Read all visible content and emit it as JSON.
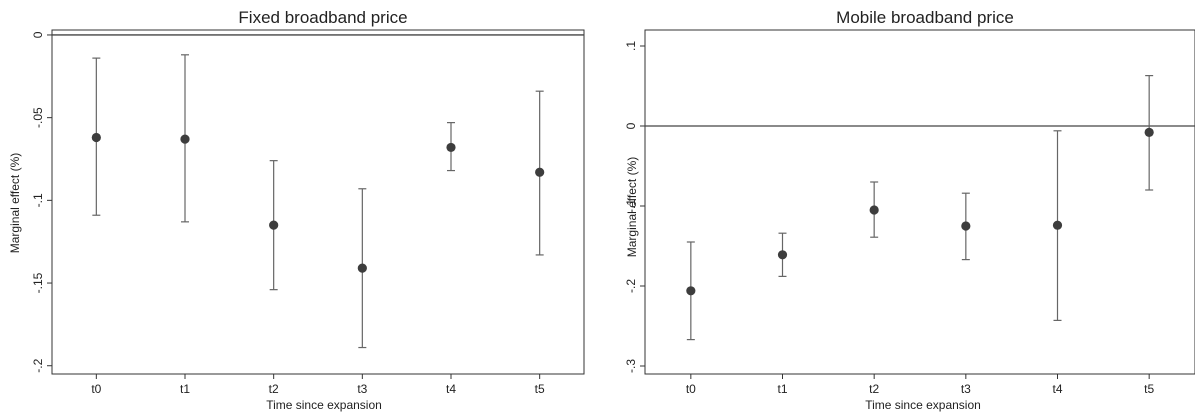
{
  "chart_data": [
    {
      "type": "scatter",
      "title": "Fixed broadband price",
      "xlabel": "Time since expansion",
      "ylabel": "Marginal effect (%)",
      "categories": [
        "t0",
        "t1",
        "t2",
        "t3",
        "t4",
        "t5"
      ],
      "ylim": [
        -0.205,
        0.003
      ],
      "yticks": [
        0,
        -0.05,
        -0.1,
        -0.15,
        -0.2
      ],
      "ytick_labels": [
        "0",
        "-.05",
        "-.1",
        "-.15",
        "-.2"
      ],
      "reference_line": 0,
      "grid": false,
      "series": [
        {
          "estimate": [
            -0.062,
            -0.063,
            -0.115,
            -0.141,
            -0.068,
            -0.083
          ],
          "ci_low": [
            -0.109,
            -0.113,
            -0.154,
            -0.189,
            -0.082,
            -0.133
          ],
          "ci_high": [
            -0.014,
            -0.012,
            -0.076,
            -0.093,
            -0.053,
            -0.034
          ]
        }
      ]
    },
    {
      "type": "scatter",
      "title": "Mobile broadband price",
      "xlabel": "Time since expansion",
      "ylabel": "Marginal effect (%)",
      "categories": [
        "t0",
        "t1",
        "t2",
        "t3",
        "t4",
        "t5"
      ],
      "ylim": [
        -0.31,
        0.12
      ],
      "yticks": [
        0.1,
        0,
        -0.1,
        -0.2,
        -0.3
      ],
      "ytick_labels": [
        ".1",
        "0",
        "-.1",
        "-.2",
        "-.3"
      ],
      "reference_line": 0,
      "grid": false,
      "series": [
        {
          "estimate": [
            -0.206,
            -0.161,
            -0.105,
            -0.125,
            -0.124,
            -0.008
          ],
          "ci_low": [
            -0.267,
            -0.188,
            -0.139,
            -0.167,
            -0.243,
            -0.08
          ],
          "ci_high": [
            -0.145,
            -0.134,
            -0.07,
            -0.084,
            -0.006,
            0.063
          ]
        }
      ]
    }
  ]
}
